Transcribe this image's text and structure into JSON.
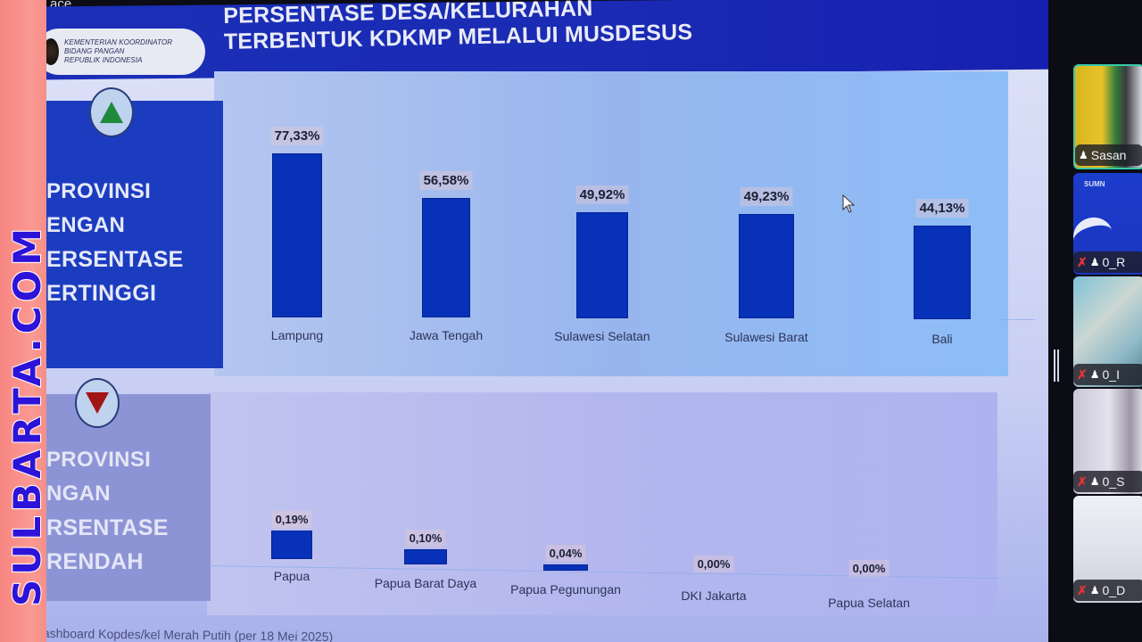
{
  "app": {
    "top_label": "ace"
  },
  "header": {
    "org_lines": [
      "KEMENTERIAN KOORDINATOR",
      "BIDANG PANGAN",
      "REPUBLIK INDONESIA"
    ],
    "title_line1": "PERSENTASE DESA/KELURAHAN",
    "title_line2": "TERBENTUK KDKMP MELALUI MUSDESUS"
  },
  "sections": {
    "top": {
      "icon": "triangle-up-icon",
      "icon_color": "#1f8a3c",
      "label_lines": [
        "PROVINSI",
        "ENGAN",
        "ERSENTASE",
        "ERTINGGI"
      ]
    },
    "bottom": {
      "icon": "triangle-down-icon",
      "icon_color": "#a11515",
      "label_lines": [
        "PROVINSI",
        "NGAN",
        "RSENTASE",
        "RENDAH"
      ]
    }
  },
  "chart_data": [
    {
      "type": "bar",
      "title": "Provinsi dengan Persentase Tertinggi",
      "categories": [
        "Lampung",
        "Jawa Tengah",
        "Sulawesi Selatan",
        "Sulawesi Barat",
        "Bali"
      ],
      "values": [
        77.33,
        56.58,
        49.92,
        49.23,
        44.13
      ],
      "value_labels": [
        "77,33%",
        "56,58%",
        "49,92%",
        "49,23%",
        "44,13%"
      ],
      "unit": "%",
      "bar_color": "#0631b8",
      "ylim": [
        0,
        80
      ],
      "grid": false,
      "xlabel": "",
      "ylabel": ""
    },
    {
      "type": "bar",
      "title": "Provinsi dengan Persentase Terendah",
      "categories": [
        "Papua",
        "Papua Barat Daya",
        "Papua Pegunungan",
        "DKI Jakarta",
        "Papua Selatan"
      ],
      "values": [
        0.19,
        0.1,
        0.04,
        0.0,
        0.0
      ],
      "value_labels": [
        "0,19%",
        "0,10%",
        "0,04%",
        "0,00%",
        "0,00%"
      ],
      "unit": "%",
      "bar_color": "#0631b8",
      "ylim": [
        0,
        0.2
      ],
      "grid": false,
      "xlabel": "",
      "ylabel": ""
    }
  ],
  "footer": {
    "source": "ashboard Kopdes/kel Merah Putih (per 18 Mei 2025)"
  },
  "watermark": {
    "text": "SULBARTA.COM"
  },
  "participants": [
    {
      "name": "Sasan",
      "muted": false
    },
    {
      "name": "0_R",
      "muted": true,
      "brand": "SUMN"
    },
    {
      "name": "0_I",
      "muted": true
    },
    {
      "name": "0_S",
      "muted": true
    },
    {
      "name": "0_D",
      "muted": true
    }
  ],
  "icons": {
    "mic_off": "✗",
    "pin": "♟"
  }
}
